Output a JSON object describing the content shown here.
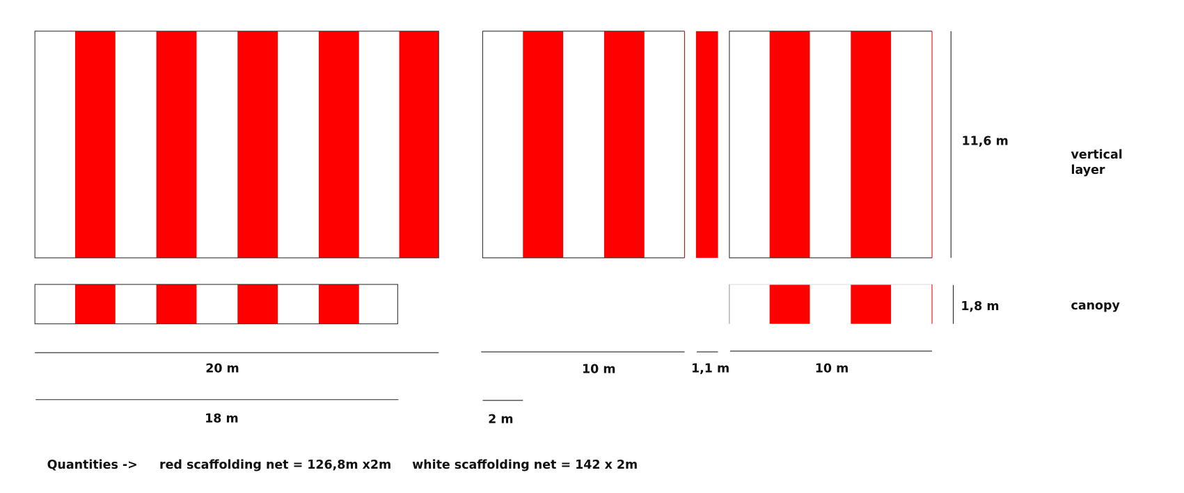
{
  "dimensions": {
    "vertical_height": "11,6 m",
    "canopy_height": "1,8 m",
    "width_left": "20 m",
    "width_middle": "10 m",
    "width_narrow": "1,1 m",
    "width_right": "10 m",
    "canopy_width_left": "18 m",
    "stripe_width": "2 m"
  },
  "labels": {
    "vertical_layer": [
      "vertical",
      "layer"
    ],
    "canopy": "canopy"
  },
  "quantities": {
    "title": "Quantities ->",
    "red": "red scaffolding net = 126,8m x2m",
    "white": "white scaffolding net = 142 x 2m"
  }
}
